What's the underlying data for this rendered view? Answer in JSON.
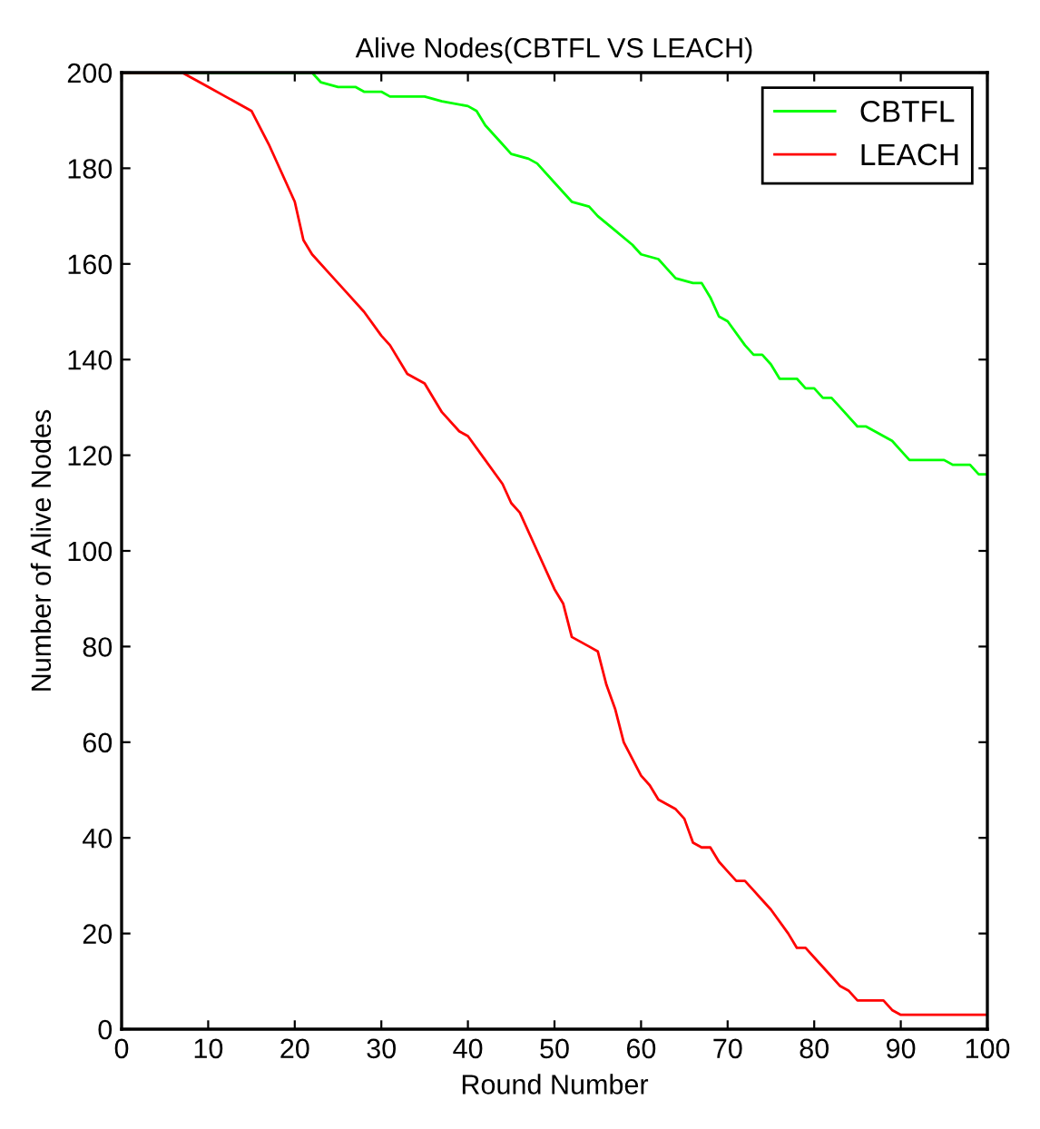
{
  "chart_data": {
    "type": "line",
    "title": "Alive Nodes(CBTFL VS LEACH)",
    "xlabel": "Round Number",
    "ylabel": "Number of Alive Nodes",
    "xlim": [
      0,
      100
    ],
    "ylim": [
      0,
      200
    ],
    "xticks": [
      0,
      10,
      20,
      30,
      40,
      50,
      60,
      70,
      80,
      90,
      100
    ],
    "yticks": [
      0,
      20,
      40,
      60,
      80,
      100,
      120,
      140,
      160,
      180,
      200
    ],
    "grid": false,
    "legend": "top right",
    "marker": "none",
    "line_style": "solid",
    "series": [
      {
        "name": "CBTFL",
        "color": "#00ff00",
        "x": [
          0,
          22,
          23,
          25,
          27,
          28,
          30,
          31,
          35,
          37,
          40,
          41,
          42,
          44,
          45,
          47,
          48,
          50,
          52,
          54,
          55,
          57,
          59,
          60,
          62,
          63,
          64,
          66,
          67,
          68,
          69,
          70,
          72,
          73,
          74,
          75,
          76,
          78,
          79,
          80,
          81,
          82,
          83,
          85,
          86,
          88,
          89,
          90,
          91,
          95,
          96,
          98,
          99,
          100
        ],
        "values": [
          200,
          200,
          198,
          197,
          197,
          196,
          196,
          195,
          195,
          194,
          193,
          192,
          189,
          185,
          183,
          182,
          181,
          177,
          173,
          172,
          170,
          167,
          164,
          162,
          161,
          159,
          157,
          156,
          156,
          153,
          149,
          148,
          143,
          141,
          141,
          139,
          136,
          136,
          134,
          134,
          132,
          132,
          130,
          126,
          126,
          124,
          123,
          121,
          119,
          119,
          118,
          118,
          116,
          116
        ]
      },
      {
        "name": "LEACH",
        "color": "#ff0000",
        "x": [
          0,
          7,
          9,
          10,
          12,
          15,
          17,
          20,
          21,
          22,
          24,
          26,
          28,
          30,
          31,
          33,
          35,
          37,
          39,
          40,
          42,
          44,
          45,
          46,
          48,
          50,
          51,
          52,
          54,
          55,
          56,
          57,
          58,
          60,
          61,
          62,
          64,
          65,
          66,
          67,
          68,
          69,
          70,
          71,
          72,
          73,
          74,
          75,
          77,
          78,
          79,
          80,
          82,
          83,
          84,
          85,
          86,
          88,
          89,
          90,
          100
        ],
        "values": [
          200,
          200,
          198,
          197,
          195,
          192,
          185,
          173,
          165,
          162,
          158,
          154,
          150,
          145,
          143,
          137,
          135,
          129,
          125,
          124,
          119,
          114,
          110,
          108,
          100,
          92,
          89,
          82,
          80,
          79,
          72,
          67,
          60,
          53,
          51,
          48,
          46,
          44,
          39,
          38,
          38,
          35,
          33,
          31,
          31,
          29,
          27,
          25,
          20,
          17,
          17,
          15,
          11,
          9,
          8,
          6,
          6,
          6,
          4,
          3,
          3
        ]
      }
    ]
  }
}
